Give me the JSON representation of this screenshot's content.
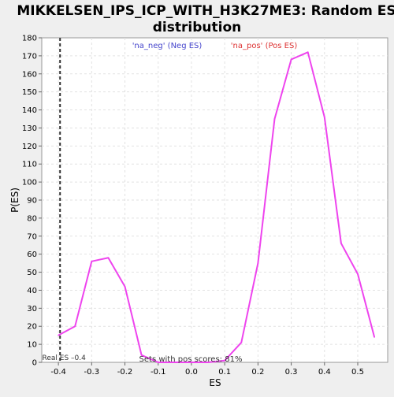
{
  "chart_data": {
    "type": "line",
    "title": "MIKKELSEN_IPS_ICP_WITH_H3K27ME3: Random ES distribution",
    "title_lines": [
      "MIKKELSEN_IPS_ICP_WITH_H3K27ME3: Random ES",
      "distribution"
    ],
    "xlabel": "ES",
    "ylabel": "P(ES)",
    "xlim": [
      -0.45,
      0.59
    ],
    "ylim": [
      0,
      180
    ],
    "x_ticks": [
      -0.4,
      -0.3,
      -0.2,
      -0.1,
      0.0,
      0.1,
      0.2,
      0.3,
      0.4,
      0.5
    ],
    "x_tick_labels": [
      "-0.4",
      "-0.3",
      "-0.2",
      "-0.1",
      "0.0",
      "0.1",
      "0.2",
      "0.3",
      "0.4",
      "0.5"
    ],
    "y_ticks": [
      0,
      10,
      20,
      30,
      40,
      50,
      60,
      70,
      80,
      90,
      100,
      110,
      120,
      130,
      140,
      150,
      160,
      170,
      180
    ],
    "grid": true,
    "series": [
      {
        "color": "#ee44ee",
        "x": [
          -0.4,
          -0.35,
          -0.3,
          -0.25,
          -0.2,
          -0.15,
          -0.1,
          -0.05,
          0.0,
          0.05,
          0.1,
          0.15,
          0.2,
          0.25,
          0.3,
          0.35,
          0.4,
          0.45,
          0.5,
          0.55
        ],
        "y": [
          15,
          20,
          56,
          58,
          42,
          4,
          0,
          0,
          0,
          0,
          1,
          11,
          55,
          135,
          168,
          172,
          136,
          66,
          49,
          14
        ]
      }
    ],
    "annotations": {
      "legend_neg": {
        "text": "'na_neg' (Neg ES)",
        "color": "#4444cc"
      },
      "legend_pos": {
        "text": "'na_pos' (Pos ES)",
        "color": "#dd3333"
      },
      "real_es_line": {
        "x": -0.395,
        "text": "Real ES –0.4"
      },
      "pos_fraction": {
        "text": "Sets with pos scores: 81%"
      }
    }
  }
}
